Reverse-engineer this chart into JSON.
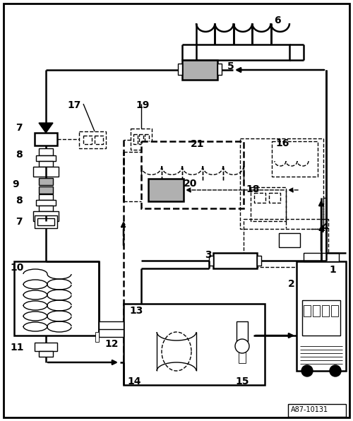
{
  "bg_color": "#ffffff",
  "figure_id": "A87-10131",
  "gray": "#b0b0b0",
  "lw_main": 1.8,
  "lw_thin": 1.0,
  "lw_border": 2.0
}
